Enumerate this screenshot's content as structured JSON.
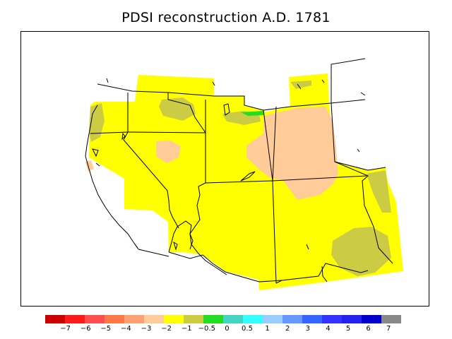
{
  "title": "PDSI reconstruction A.D. 1781",
  "colors": {
    "yellow": "#ffff00",
    "olive": "#cccc44",
    "peach": "#ffcc99",
    "green": "#22dd22",
    "border": "#000000"
  },
  "legend": {
    "swatch_colors": [
      "#cc0000",
      "#ff1a1a",
      "#ff4d4d",
      "#ff7744",
      "#ffa070",
      "#ffcc99",
      "#ffff00",
      "#cccc44",
      "#22dd22",
      "#44d4c4",
      "#33ffff",
      "#99ccff",
      "#6699ff",
      "#3366ff",
      "#3333ff",
      "#2222ee",
      "#0000cc",
      "#888888"
    ],
    "labels": [
      "−7",
      "−6",
      "−5",
      "−4",
      "−3",
      "−2",
      "−1",
      "−0.5",
      "0",
      "0.5",
      "1",
      "2",
      "3",
      "4",
      "5",
      "6",
      "7"
    ]
  }
}
